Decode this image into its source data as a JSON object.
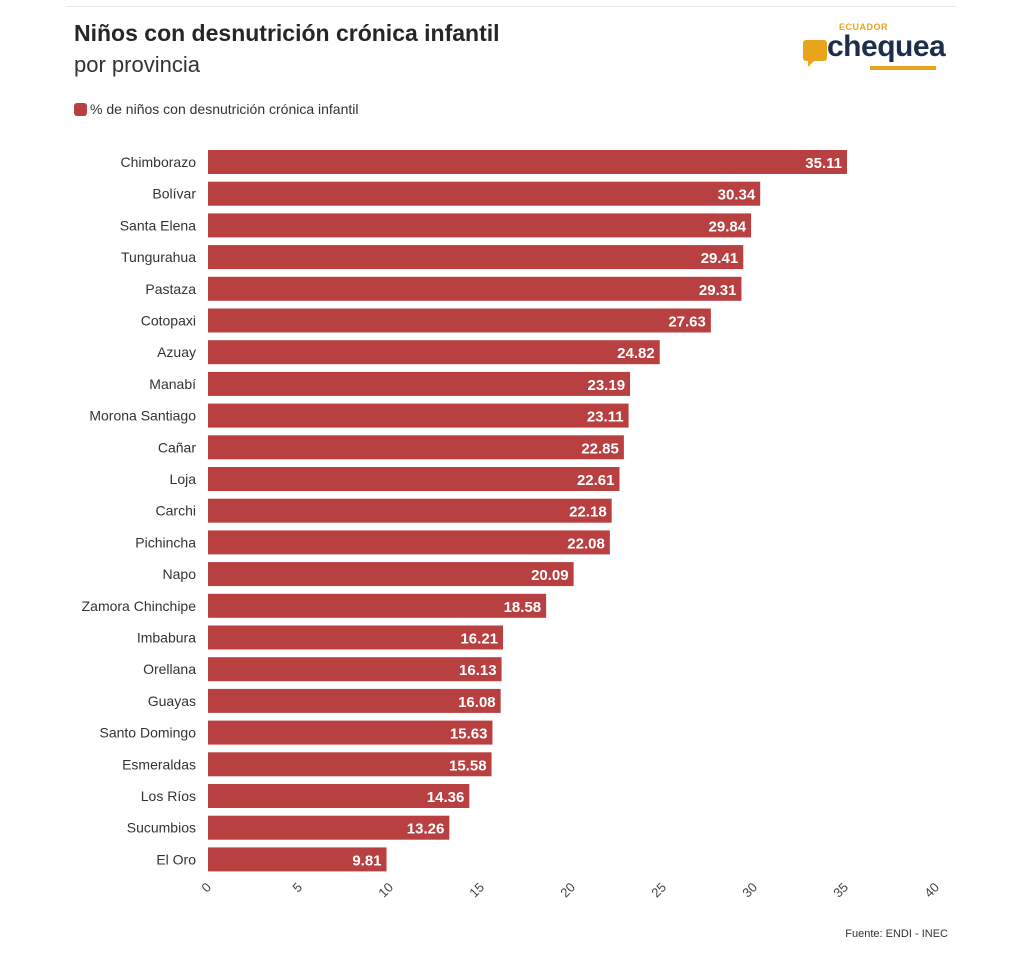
{
  "header": {
    "title": "Niños con desnutrición crónica infantil",
    "subtitle": "por provincia"
  },
  "logo": {
    "top_text": "ECUADOR",
    "main_text": "chequea",
    "accent_color": "#e8a51c",
    "text_color": "#1d2d4a"
  },
  "legend": {
    "label": "% de niños con desnutrición crónica infantil",
    "color": "#b84040"
  },
  "source": "Fuente: ENDI - INEC",
  "chart_data": {
    "type": "bar",
    "orientation": "horizontal",
    "categories": [
      "Chimborazo",
      "Bolívar",
      "Santa Elena",
      "Tungurahua",
      "Pastaza",
      "Cotopaxi",
      "Azuay",
      "Manabí",
      "Morona Santiago",
      "Cañar",
      "Loja",
      "Carchi",
      "Pichincha",
      "Napo",
      "Zamora Chinchipe",
      "Imbabura",
      "Orellana",
      "Guayas",
      "Santo Domingo",
      "Esmeraldas",
      "Los Ríos",
      "Sucumbios",
      "El Oro"
    ],
    "series": [
      {
        "name": "% de niños con desnutrición crónica infantil",
        "values": [
          35.11,
          30.34,
          29.84,
          29.41,
          29.31,
          27.63,
          24.82,
          23.19,
          23.11,
          22.85,
          22.61,
          22.18,
          22.08,
          20.09,
          18.58,
          16.21,
          16.13,
          16.08,
          15.63,
          15.58,
          14.36,
          13.26,
          9.81
        ],
        "labels": [
          "35.11",
          "30.34",
          "29.84",
          "29.41",
          "29.31",
          "27.63",
          "24.82",
          "23.19",
          "23.11",
          "22.85",
          "22.61",
          "22.18",
          "22.08",
          "20.09",
          "18.58",
          "16.21",
          "16.13",
          "16.08",
          "15.63",
          "15.58",
          "14.36",
          "13.26",
          "9.81"
        ]
      }
    ],
    "xlim": [
      0,
      40
    ],
    "xticks": [
      "0",
      "5",
      "10",
      "15",
      "20",
      "25",
      "30",
      "35",
      "40"
    ],
    "bar_color": "#b84040",
    "grid": false,
    "legend_position": "top-left"
  }
}
